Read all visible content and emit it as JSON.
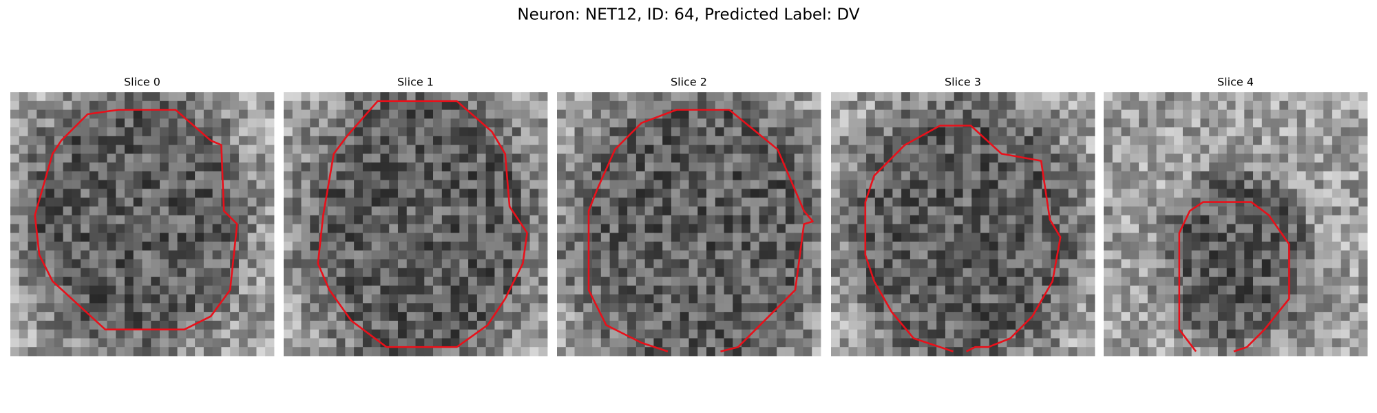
{
  "title": "Neuron: NET12, ID: 64, Predicted Label: DV",
  "panels": [
    {
      "title": "Slice 0"
    },
    {
      "title": "Slice 1"
    },
    {
      "title": "Slice 2"
    },
    {
      "title": "Slice 3"
    },
    {
      "title": "Slice 4"
    }
  ]
}
